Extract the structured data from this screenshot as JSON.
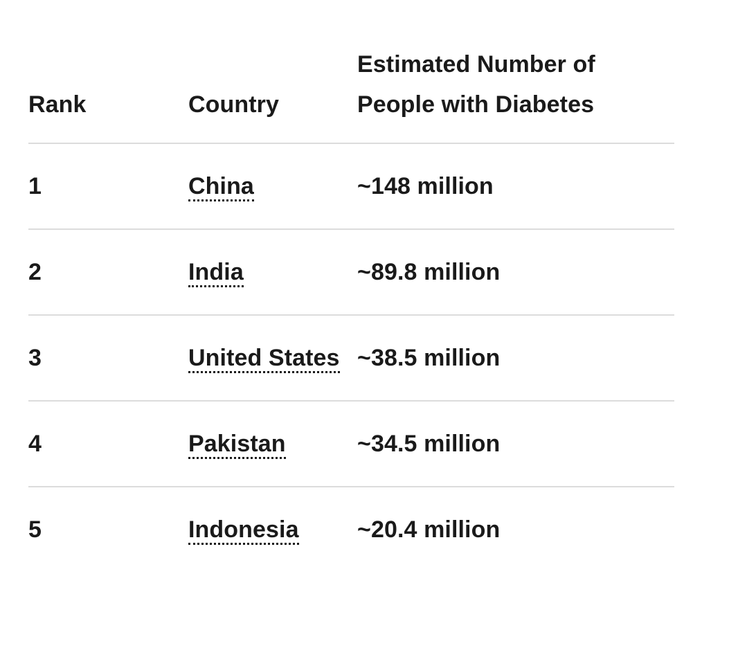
{
  "table": {
    "headers": {
      "rank": "Rank",
      "country": "Country",
      "value": "Estimated Number of People with Diabetes"
    },
    "rows": [
      {
        "rank": "1",
        "country": "China",
        "value": "~148 million"
      },
      {
        "rank": "2",
        "country": "India",
        "value": "~89.8 million"
      },
      {
        "rank": "3",
        "country": "United States",
        "value": "~38.5 million"
      },
      {
        "rank": "4",
        "country": "Pakistan",
        "value": "~34.5 million"
      },
      {
        "rank": "5",
        "country": "Indonesia",
        "value": "~20.4 million"
      }
    ]
  }
}
